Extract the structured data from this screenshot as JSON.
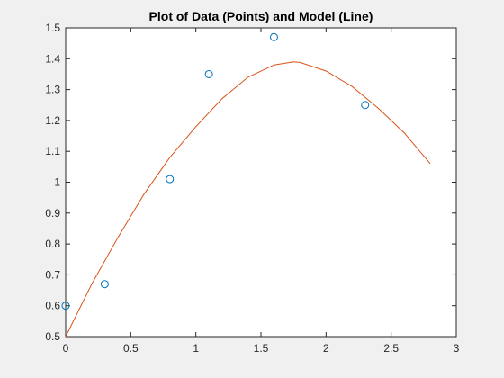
{
  "chart_data": {
    "type": "scatter",
    "title": "Plot of Data (Points) and Model (Line)",
    "xlabel": "",
    "ylabel": "",
    "xlim": [
      0,
      3
    ],
    "ylim": [
      0.5,
      1.5
    ],
    "x_ticks": [
      "0",
      "0.5",
      "1",
      "1.5",
      "2",
      "2.5",
      "3"
    ],
    "x_tick_values": [
      0,
      0.5,
      1,
      1.5,
      2,
      2.5,
      3
    ],
    "y_ticks": [
      "0.5",
      "0.6",
      "0.7",
      "0.8",
      "0.9",
      "1",
      "1.1",
      "1.2",
      "1.3",
      "1.4",
      "1.5"
    ],
    "y_tick_values": [
      0.5,
      0.6,
      0.7,
      0.8,
      0.9,
      1.0,
      1.1,
      1.2,
      1.3,
      1.4,
      1.5
    ],
    "grid": false,
    "series": [
      {
        "type": "scatter",
        "marker": "open-circle",
        "color": "#0072bd",
        "x": [
          0,
          0.3,
          0.8,
          1.1,
          1.6,
          2.3
        ],
        "y": [
          0.6,
          0.67,
          1.01,
          1.35,
          1.47,
          1.25
        ]
      },
      {
        "type": "line",
        "color": "#d95319",
        "x": [
          0,
          0.2,
          0.4,
          0.6,
          0.8,
          1.0,
          1.2,
          1.4,
          1.6,
          1.75,
          1.8,
          2.0,
          2.2,
          2.4,
          2.6,
          2.8
        ],
        "y": [
          0.5,
          0.67,
          0.82,
          0.96,
          1.08,
          1.18,
          1.27,
          1.34,
          1.38,
          1.39,
          1.388,
          1.36,
          1.31,
          1.24,
          1.16,
          1.06
        ]
      }
    ]
  },
  "colors": {
    "figure_bg": "#f0f0f0",
    "axes_bg": "#ffffff",
    "axis": "#262626",
    "points": "#0072bd",
    "model_line": "#d95319"
  }
}
